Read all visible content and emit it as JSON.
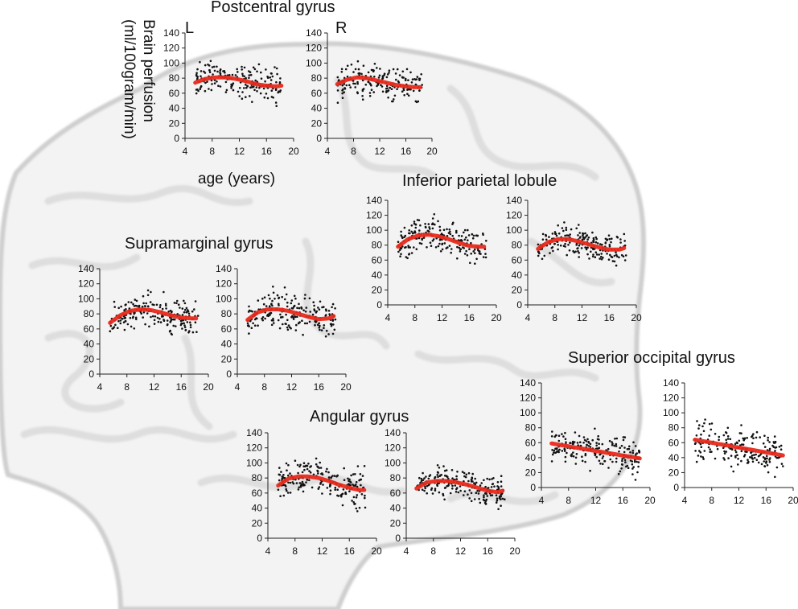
{
  "figure": {
    "hemisphere_left": "L",
    "hemisphere_right": "R",
    "ylabel_line1": "Brain perfusion",
    "ylabel_line2": "(ml/100gram/min)",
    "xlabel": "age (years)"
  },
  "regions": [
    {
      "id": "postcentral",
      "title": "Postcentral gyrus"
    },
    {
      "id": "inferior_parietal",
      "title": "Inferior parietal lobule"
    },
    {
      "id": "supramarginal",
      "title": "Supramarginal gyrus"
    },
    {
      "id": "superior_occipital",
      "title": "Superior occipital gyrus"
    },
    {
      "id": "angular",
      "title": "Angular gyrus"
    }
  ],
  "chart_data": [
    {
      "type": "scatter",
      "region": "Postcentral gyrus",
      "hemisphere": "L",
      "xticks": [
        "4",
        "8",
        "12",
        "16",
        "20"
      ],
      "yticks": [
        "0",
        "20",
        "40",
        "60",
        "80",
        "100",
        "120",
        "140"
      ],
      "xlim": [
        4,
        20
      ],
      "ylim": [
        0,
        140
      ],
      "fit_color": "#e8291c",
      "fit": {
        "x": [
          5.5,
          7,
          8.5,
          10,
          11.5,
          13,
          14.5,
          16,
          17.5,
          18.2
        ],
        "y": [
          74,
          79,
          81,
          81,
          79,
          76,
          72,
          70,
          69,
          70
        ]
      },
      "scatter": {
        "n": 190,
        "mean": 76,
        "spread": 15,
        "x_range": [
          5.5,
          18.5
        ]
      }
    },
    {
      "type": "scatter",
      "region": "Postcentral gyrus",
      "hemisphere": "R",
      "xticks": [
        "4",
        "8",
        "12",
        "16",
        "20"
      ],
      "yticks": [
        "0",
        "20",
        "40",
        "60",
        "80",
        "100",
        "120",
        "140"
      ],
      "xlim": [
        4,
        20
      ],
      "ylim": [
        0,
        140
      ],
      "fit_color": "#e8291c",
      "fit": {
        "x": [
          5.5,
          7,
          8.5,
          10,
          11.5,
          13,
          14.5,
          16,
          17.5,
          18.2
        ],
        "y": [
          72,
          78,
          81,
          80,
          77,
          74,
          71,
          69,
          68,
          68
        ]
      },
      "scatter": {
        "n": 190,
        "mean": 76,
        "spread": 17,
        "x_range": [
          5.5,
          18.5
        ]
      }
    },
    {
      "type": "scatter",
      "region": "Inferior parietal lobule",
      "hemisphere": "L",
      "xticks": [
        "4",
        "8",
        "12",
        "16",
        "20"
      ],
      "yticks": [
        "0",
        "20",
        "40",
        "60",
        "80",
        "100",
        "120",
        "140"
      ],
      "xlim": [
        4,
        20
      ],
      "ylim": [
        0,
        140
      ],
      "fit_color": "#e8291c",
      "fit": {
        "x": [
          5.5,
          7,
          8.5,
          10,
          11.5,
          13,
          14.5,
          16,
          17.5,
          18.2
        ],
        "y": [
          78,
          88,
          93,
          94,
          92,
          88,
          83,
          79,
          78,
          78
        ]
      },
      "scatter": {
        "n": 200,
        "mean": 88,
        "spread": 16,
        "x_range": [
          5.5,
          18.5
        ]
      }
    },
    {
      "type": "scatter",
      "region": "Inferior parietal lobule",
      "hemisphere": "R",
      "xticks": [
        "4",
        "8",
        "12",
        "16",
        "20"
      ],
      "yticks": [
        "0",
        "20",
        "40",
        "60",
        "80",
        "100",
        "120",
        "140"
      ],
      "xlim": [
        4,
        20
      ],
      "ylim": [
        0,
        140
      ],
      "fit_color": "#e8291c",
      "fit": {
        "x": [
          5.5,
          7,
          8.5,
          10,
          11.5,
          13,
          14.5,
          16,
          17.5,
          18.2
        ],
        "y": [
          75,
          84,
          88,
          88,
          85,
          81,
          77,
          74,
          74,
          76
        ]
      },
      "scatter": {
        "n": 200,
        "mean": 83,
        "spread": 16,
        "x_range": [
          5.5,
          18.5
        ]
      }
    },
    {
      "type": "scatter",
      "region": "Supramarginal gyrus",
      "hemisphere": "L",
      "xticks": [
        "4",
        "8",
        "12",
        "16",
        "20"
      ],
      "yticks": [
        "0",
        "20",
        "40",
        "60",
        "80",
        "100",
        "120",
        "140"
      ],
      "xlim": [
        4,
        20
      ],
      "ylim": [
        0,
        140
      ],
      "fit_color": "#e8291c",
      "fit": {
        "x": [
          5.5,
          7,
          8.5,
          10,
          11.5,
          13,
          14.5,
          16,
          17.5,
          18.2
        ],
        "y": [
          68,
          78,
          84,
          86,
          85,
          82,
          78,
          75,
          74,
          74
        ]
      },
      "scatter": {
        "n": 200,
        "mean": 82,
        "spread": 16,
        "x_range": [
          5.5,
          18.5
        ]
      }
    },
    {
      "type": "scatter",
      "region": "Supramarginal gyrus",
      "hemisphere": "R",
      "xticks": [
        "4",
        "8",
        "12",
        "16",
        "20"
      ],
      "yticks": [
        "0",
        "20",
        "40",
        "60",
        "80",
        "100",
        "120",
        "140"
      ],
      "xlim": [
        4,
        20
      ],
      "ylim": [
        0,
        140
      ],
      "fit_color": "#e8291c",
      "fit": {
        "x": [
          5.5,
          7,
          8.5,
          10,
          11.5,
          13,
          14.5,
          16,
          17.5,
          18.2
        ],
        "y": [
          72,
          82,
          86,
          86,
          84,
          80,
          76,
          73,
          74,
          77
        ]
      },
      "scatter": {
        "n": 200,
        "mean": 82,
        "spread": 17,
        "x_range": [
          5.5,
          18.5
        ]
      }
    },
    {
      "type": "scatter",
      "region": "Superior occipital gyrus",
      "hemisphere": "L",
      "xticks": [
        "4",
        "8",
        "12",
        "16",
        "20"
      ],
      "yticks": [
        "0",
        "20",
        "40",
        "60",
        "80",
        "100",
        "120",
        "140"
      ],
      "xlim": [
        4,
        20
      ],
      "ylim": [
        0,
        140
      ],
      "fit_color": "#e8291c",
      "fit": {
        "x": [
          5.5,
          18.5
        ],
        "y": [
          59,
          39
        ]
      },
      "scatter": {
        "n": 200,
        "mean": 52,
        "spread": 18,
        "x_range": [
          5.5,
          18.5
        ]
      }
    },
    {
      "type": "scatter",
      "region": "Superior occipital gyrus",
      "hemisphere": "R",
      "xticks": [
        "4",
        "8",
        "12",
        "16",
        "20"
      ],
      "yticks": [
        "0",
        "20",
        "40",
        "60",
        "80",
        "100",
        "120",
        "140"
      ],
      "xlim": [
        4,
        20
      ],
      "ylim": [
        0,
        140
      ],
      "fit_color": "#e8291c",
      "fit": {
        "x": [
          5.5,
          18.5
        ],
        "y": [
          64,
          43
        ]
      },
      "scatter": {
        "n": 200,
        "mean": 54,
        "spread": 18,
        "x_range": [
          5.5,
          18.5
        ]
      }
    },
    {
      "type": "scatter",
      "region": "Angular gyrus",
      "hemisphere": "L",
      "xticks": [
        "4",
        "8",
        "12",
        "16",
        "20"
      ],
      "yticks": [
        "0",
        "20",
        "40",
        "60",
        "80",
        "100",
        "120",
        "140"
      ],
      "xlim": [
        4,
        20
      ],
      "ylim": [
        0,
        140
      ],
      "fit_color": "#e8291c",
      "fit": {
        "x": [
          5.5,
          7,
          8.5,
          10,
          11.5,
          13,
          14.5,
          16,
          17.5,
          18.2
        ],
        "y": [
          70,
          79,
          82,
          82,
          80,
          76,
          71,
          67,
          64,
          64
        ]
      },
      "scatter": {
        "n": 200,
        "mean": 76,
        "spread": 18,
        "x_range": [
          5.5,
          18.5
        ]
      }
    },
    {
      "type": "scatter",
      "region": "Angular gyrus",
      "hemisphere": "R",
      "xticks": [
        "4",
        "8",
        "12",
        "16",
        "20"
      ],
      "yticks": [
        "0",
        "20",
        "40",
        "60",
        "80",
        "100",
        "120",
        "140"
      ],
      "xlim": [
        4,
        20
      ],
      "ylim": [
        0,
        140
      ],
      "fit_color": "#e8291c",
      "fit": {
        "x": [
          5.5,
          7,
          8.5,
          10,
          11.5,
          13,
          14.5,
          16,
          17.5,
          18.2
        ],
        "y": [
          66,
          74,
          76,
          76,
          74,
          71,
          67,
          63,
          61,
          63
        ]
      },
      "scatter": {
        "n": 200,
        "mean": 72,
        "spread": 15,
        "x_range": [
          5.5,
          18.5
        ]
      }
    }
  ]
}
